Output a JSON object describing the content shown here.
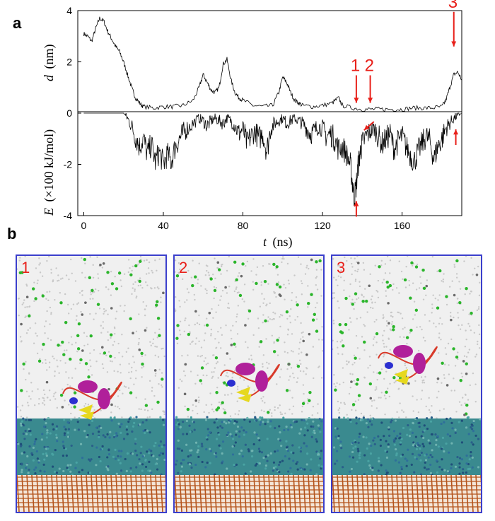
{
  "panel_labels": {
    "a": "a",
    "b": "b"
  },
  "chart_data": {
    "type": "line",
    "xlabel_italic": "t",
    "xlabel_unit": "(ns)",
    "upper_ylabel_italic": "d",
    "upper_ylabel_unit": "(nm)",
    "lower_ylabel_italic": "E",
    "lower_ylabel_unit": "(×100 kJ/mol)",
    "xlim": [
      -3,
      190
    ],
    "ylim": [
      -4,
      4
    ],
    "x_ticks": [
      0,
      40,
      80,
      120,
      160
    ],
    "y_ticks": [
      4,
      2,
      0,
      -2,
      -4
    ],
    "grid": false,
    "series": [
      {
        "x": [
          0,
          2,
          4,
          6,
          8,
          10,
          12,
          14,
          16,
          18,
          20,
          22,
          24,
          26,
          28,
          30,
          35,
          40,
          45,
          50,
          55,
          58,
          60,
          62,
          64,
          66,
          68,
          70,
          72,
          74,
          76,
          78,
          80,
          85,
          90,
          95,
          98,
          100,
          102,
          104,
          106,
          108,
          110,
          115,
          120,
          125,
          128,
          130,
          135,
          140,
          145,
          150,
          155,
          160,
          165,
          170,
          175,
          180,
          182,
          184,
          186,
          188,
          190
        ],
        "y": [
          3.1,
          3.0,
          2.8,
          3.3,
          3.7,
          3.6,
          3.2,
          2.9,
          2.6,
          2.4,
          2.0,
          1.5,
          1.0,
          0.6,
          0.4,
          0.25,
          0.2,
          0.25,
          0.25,
          0.3,
          0.5,
          1.0,
          1.5,
          1.2,
          0.9,
          0.8,
          1.0,
          1.9,
          2.1,
          1.3,
          0.8,
          0.6,
          0.5,
          0.3,
          0.25,
          0.3,
          0.8,
          1.4,
          1.2,
          0.8,
          0.5,
          0.4,
          0.3,
          0.25,
          0.3,
          0.4,
          0.6,
          0.3,
          0.2,
          0.15,
          0.15,
          0.15,
          0.15,
          0.15,
          0.2,
          0.2,
          0.2,
          0.25,
          0.5,
          1.0,
          1.5,
          1.6,
          1.3
        ]
      },
      {
        "x": [
          0,
          5,
          10,
          15,
          20,
          22,
          24,
          26,
          28,
          30,
          32,
          34,
          36,
          38,
          40,
          42,
          44,
          46,
          48,
          50,
          52,
          55,
          58,
          60,
          62,
          64,
          66,
          68,
          70,
          72,
          74,
          76,
          78,
          80,
          82,
          84,
          86,
          88,
          90,
          92,
          94,
          96,
          98,
          100,
          102,
          104,
          106,
          108,
          110,
          112,
          114,
          116,
          118,
          120,
          122,
          124,
          126,
          128,
          130,
          132,
          134,
          135,
          136,
          137,
          138,
          139,
          140,
          142,
          144,
          146,
          148,
          150,
          152,
          154,
          156,
          158,
          160,
          162,
          164,
          166,
          168,
          170,
          172,
          174,
          176,
          178,
          180,
          182,
          184,
          186,
          188,
          190
        ],
        "y": [
          0,
          0,
          0,
          0,
          0,
          -0.2,
          -0.5,
          -0.9,
          -1.3,
          -1.0,
          -1.6,
          -1.2,
          -1.9,
          -1.5,
          -2.0,
          -1.6,
          -1.9,
          -1.3,
          -1.0,
          -0.8,
          -0.6,
          -0.4,
          -0.2,
          -0.3,
          -0.5,
          -0.3,
          -0.2,
          -0.3,
          -0.4,
          -0.2,
          -0.3,
          -0.5,
          -0.8,
          -0.6,
          -1.2,
          -0.9,
          -0.7,
          -1.0,
          -0.8,
          -1.5,
          -0.6,
          -0.4,
          -0.3,
          -0.2,
          -0.4,
          -0.3,
          -0.2,
          -0.3,
          -0.4,
          -0.6,
          -0.8,
          -0.7,
          -0.5,
          -0.6,
          -0.9,
          -0.8,
          -1.0,
          -1.4,
          -1.3,
          -1.6,
          -2.0,
          -2.7,
          -3.3,
          -2.8,
          -2.0,
          -1.5,
          -1.2,
          -0.9,
          -0.7,
          -0.6,
          -0.9,
          -1.2,
          -1.0,
          -0.8,
          -1.4,
          -1.1,
          -0.9,
          -1.3,
          -1.6,
          -1.9,
          -1.5,
          -1.2,
          -0.9,
          -1.1,
          -1.8,
          -1.3,
          -1.0,
          -0.6,
          -0.4,
          -0.2,
          -0.1,
          0
        ]
      }
    ],
    "annotations": [
      {
        "label": "1",
        "x": 137,
        "y": 0.4
      },
      {
        "label": "2",
        "x": 144,
        "y": 0.4
      },
      {
        "label": "3",
        "x": 186,
        "y": 2.6
      }
    ],
    "extra_arrows": [
      {
        "x": 137,
        "y": -3.6,
        "direction": "up"
      },
      {
        "x": 143,
        "y": -0.5,
        "direction": "diagonal"
      },
      {
        "x": 187,
        "y": -0.8,
        "direction": "up"
      }
    ]
  },
  "snapshots": [
    {
      "label": "1"
    },
    {
      "label": "2"
    },
    {
      "label": "3"
    }
  ],
  "colors": {
    "annotation_red": "#e8201a",
    "frame_blue": "#3b3fcc",
    "water_gray": "#c8c8c8",
    "ion_green": "#2bb52b",
    "polymer_teal": "#3a8a8f",
    "surface_orange": "#b5541c",
    "helix_magenta": "#b0209a",
    "sheet_yellow": "#e6d81e"
  }
}
